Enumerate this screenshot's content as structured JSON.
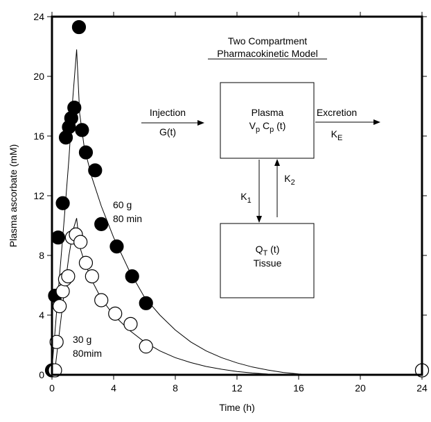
{
  "chart_data": {
    "type": "scatter",
    "title": "",
    "xlabel": "Time (h)",
    "ylabel": "Plasma ascorbate (mM)",
    "xlim": [
      0,
      24
    ],
    "ylim": [
      0,
      24
    ],
    "x_ticks": [
      0,
      4,
      8,
      12,
      16,
      20,
      24
    ],
    "y_ticks": [
      0,
      4,
      8,
      12,
      16,
      20,
      24
    ],
    "x_tick_labels": [
      "0",
      "4",
      "8",
      "12",
      "16",
      "20",
      "24"
    ],
    "y_tick_labels": [
      "0",
      "4",
      "8",
      "12",
      "16",
      "20",
      "24"
    ],
    "grid": false,
    "series": [
      {
        "marker": "filled-circle",
        "color": "#000000",
        "points": [
          {
            "x": 0.2,
            "y": 5.3
          },
          {
            "x": 0.4,
            "y": 9.2
          },
          {
            "x": 0.7,
            "y": 11.5
          },
          {
            "x": 0.9,
            "y": 15.9
          },
          {
            "x": 1.1,
            "y": 16.6
          },
          {
            "x": 1.25,
            "y": 17.2
          },
          {
            "x": 1.45,
            "y": 17.9
          },
          {
            "x": 1.75,
            "y": 23.3
          },
          {
            "x": 1.95,
            "y": 16.4
          },
          {
            "x": 2.2,
            "y": 14.9
          },
          {
            "x": 2.8,
            "y": 13.7
          },
          {
            "x": 3.2,
            "y": 10.1
          },
          {
            "x": 4.2,
            "y": 8.6
          },
          {
            "x": 5.2,
            "y": 6.6
          },
          {
            "x": 6.1,
            "y": 4.8
          },
          {
            "x": 0,
            "y": 0.3
          },
          {
            "x": 24,
            "y": 0.3
          }
        ],
        "fit": [
          {
            "x": 0,
            "y": 0.4
          },
          {
            "x": 0.4,
            "y": 5.5
          },
          {
            "x": 0.8,
            "y": 10.5
          },
          {
            "x": 1.1,
            "y": 14.5
          },
          {
            "x": 1.35,
            "y": 18.5
          },
          {
            "x": 1.6,
            "y": 21.8
          },
          {
            "x": 1.8,
            "y": 17.5
          },
          {
            "x": 2.1,
            "y": 15.2
          },
          {
            "x": 2.6,
            "y": 13.2
          },
          {
            "x": 3.2,
            "y": 11.3
          },
          {
            "x": 4,
            "y": 9.2
          },
          {
            "x": 5,
            "y": 7.0
          },
          {
            "x": 6,
            "y": 5.2
          },
          {
            "x": 7,
            "y": 4.0
          },
          {
            "x": 8,
            "y": 3.0
          },
          {
            "x": 9,
            "y": 2.2
          },
          {
            "x": 10,
            "y": 1.6
          },
          {
            "x": 11,
            "y": 1.15
          },
          {
            "x": 12,
            "y": 0.8
          },
          {
            "x": 13,
            "y": 0.52
          },
          {
            "x": 14,
            "y": 0.32
          },
          {
            "x": 15,
            "y": 0.16
          },
          {
            "x": 16,
            "y": 0.06
          },
          {
            "x": 17,
            "y": 0
          }
        ]
      },
      {
        "marker": "open-circle",
        "color": "#000000",
        "points": [
          {
            "x": 0.3,
            "y": 2.2
          },
          {
            "x": 0.5,
            "y": 4.6
          },
          {
            "x": 0.7,
            "y": 5.6
          },
          {
            "x": 0.85,
            "y": 6.4
          },
          {
            "x": 1.05,
            "y": 6.6
          },
          {
            "x": 1.3,
            "y": 9.2
          },
          {
            "x": 1.55,
            "y": 9.4
          },
          {
            "x": 1.85,
            "y": 8.9
          },
          {
            "x": 2.2,
            "y": 7.5
          },
          {
            "x": 2.6,
            "y": 6.6
          },
          {
            "x": 3.2,
            "y": 5.0
          },
          {
            "x": 4.1,
            "y": 4.1
          },
          {
            "x": 5.1,
            "y": 3.4
          },
          {
            "x": 6.1,
            "y": 1.9
          },
          {
            "x": 0.2,
            "y": 0.3
          },
          {
            "x": 24,
            "y": 0.3
          }
        ],
        "fit": [
          {
            "x": 0.2,
            "y": 0.4
          },
          {
            "x": 0.5,
            "y": 3.0
          },
          {
            "x": 0.8,
            "y": 5.6
          },
          {
            "x": 1.1,
            "y": 8.0
          },
          {
            "x": 1.4,
            "y": 9.8
          },
          {
            "x": 1.6,
            "y": 10.5
          },
          {
            "x": 1.8,
            "y": 8.6
          },
          {
            "x": 2.1,
            "y": 7.6
          },
          {
            "x": 2.6,
            "y": 6.3
          },
          {
            "x": 3.2,
            "y": 5.1
          },
          {
            "x": 4,
            "y": 4.0
          },
          {
            "x": 5,
            "y": 3.0
          },
          {
            "x": 6,
            "y": 2.2
          },
          {
            "x": 7,
            "y": 1.6
          },
          {
            "x": 8,
            "y": 1.15
          },
          {
            "x": 9,
            "y": 0.82
          },
          {
            "x": 10,
            "y": 0.56
          },
          {
            "x": 11,
            "y": 0.37
          },
          {
            "x": 12,
            "y": 0.22
          },
          {
            "x": 13,
            "y": 0.12
          },
          {
            "x": 14,
            "y": 0.05
          },
          {
            "x": 15,
            "y": 0.01
          },
          {
            "x": 16,
            "y": 0
          }
        ]
      }
    ],
    "annotations": [
      {
        "id": "annotation-60g",
        "lines": [
          "60 g",
          "80 min"
        ],
        "x": 4.0,
        "y": 11.6
      },
      {
        "id": "annotation-30g",
        "lines": [
          "30 g",
          "80mim"
        ],
        "x": 1.3,
        "y": 2.55
      }
    ]
  },
  "diagram": {
    "title_line1": "Two Compartment",
    "title_line2": "Pharmacokinetic Model",
    "injection_label": "Injection",
    "injection_sub": "G(t)",
    "plasma_title": "Plasma",
    "plasma_vp": "V",
    "plasma_vp_sub": "p",
    "plasma_cp": "C",
    "plasma_cp_sub": "p",
    "plasma_t": "(t)",
    "excretion_label": "Excretion",
    "ke": "K",
    "ke_sub": "E",
    "k1": "K",
    "k1_sub": "1",
    "k2": "K",
    "k2_sub": "2",
    "tissue_q": "Q",
    "tissue_q_sub": "T",
    "tissue_t": "(t)",
    "tissue_label": "Tissue"
  }
}
